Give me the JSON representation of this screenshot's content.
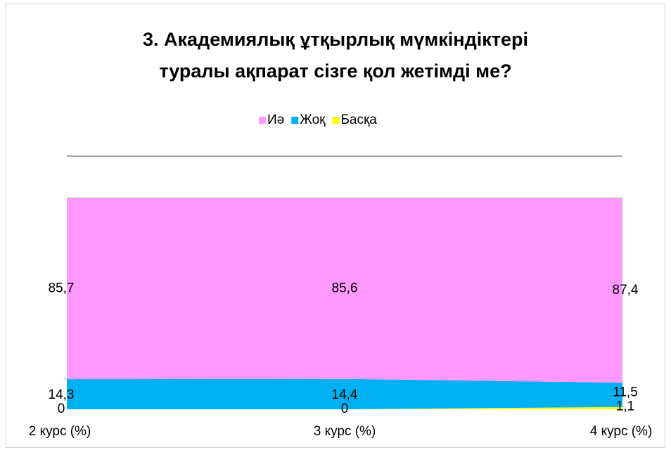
{
  "chart_data": {
    "type": "stacked_area",
    "title": "3. Академиялық ұтқырлық мүмкіндіктері",
    "subtitle": "туралы ақпарат сізге қол жетімді ме?",
    "categories": [
      "2 курс (%)",
      "3 курс (%)",
      "4 курс (%)"
    ],
    "series": [
      {
        "name": "Иә",
        "color": "#ff99ff",
        "values": [
          85.7,
          85.6,
          87.4
        ],
        "value_labels": [
          "85,7",
          "85,6",
          "87,4"
        ]
      },
      {
        "name": "Жоқ",
        "color": "#00b0f0",
        "values": [
          14.3,
          14.4,
          11.5
        ],
        "value_labels": [
          "14,3",
          "14,4",
          "11,5"
        ]
      },
      {
        "name": "Басқа",
        "color": "#ffff00",
        "values": [
          0,
          0,
          1.1
        ],
        "value_labels": [
          "0",
          "0",
          "1,1"
        ]
      }
    ],
    "ylim": [
      0,
      120
    ],
    "yticks": [
      100,
      120
    ],
    "grid": true,
    "legend": "top"
  }
}
